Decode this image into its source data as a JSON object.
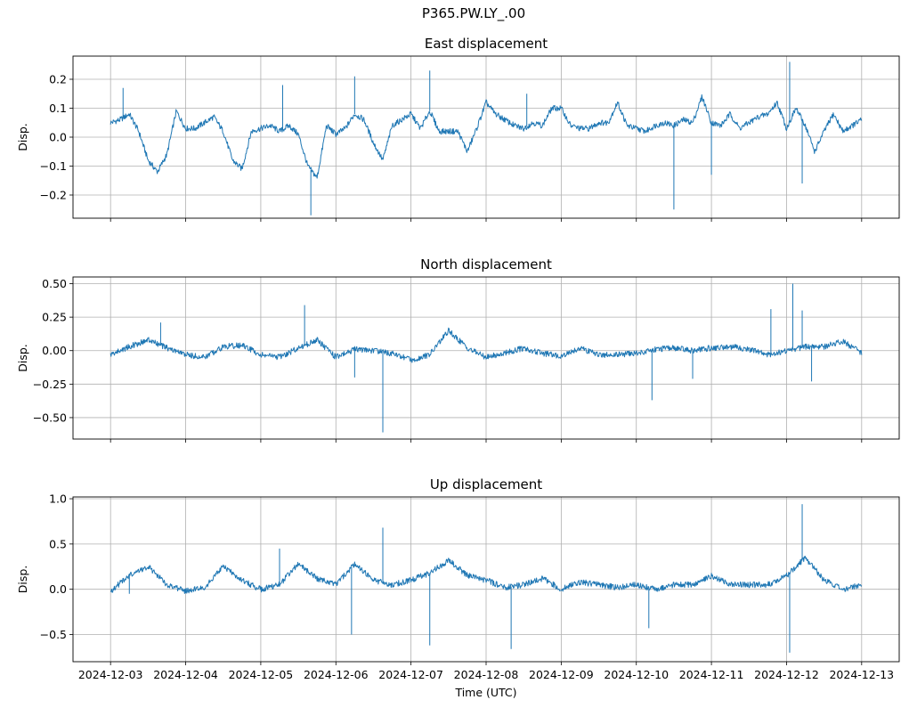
{
  "figure": {
    "title": "P365.PW.LY_.00",
    "xlabel": "Time (UTC)"
  },
  "chart_data": [
    {
      "type": "line",
      "title": "East displacement",
      "ylabel": "Disp.",
      "xlim": [
        "2024-12-02T12:00",
        "2024-12-13T12:00"
      ],
      "ylim": [
        -0.28,
        0.28
      ],
      "yticks": [
        0.2,
        0.1,
        0.0,
        -0.1,
        -0.2
      ],
      "ytick_labels": [
        "0.2",
        "0.1",
        "0.0",
        "−0.1",
        "−0.2"
      ],
      "grid": true,
      "series": [
        {
          "color": "#1f77b4",
          "x": [
            "2024-12-03T00:00",
            "2024-12-03T03:00",
            "2024-12-03T06:00",
            "2024-12-03T09:00",
            "2024-12-03T12:00",
            "2024-12-03T15:00",
            "2024-12-03T18:00",
            "2024-12-03T21:00",
            "2024-12-04T00:00",
            "2024-12-04T03:00",
            "2024-12-04T06:00",
            "2024-12-04T09:00",
            "2024-12-04T12:00",
            "2024-12-04T15:00",
            "2024-12-04T18:00",
            "2024-12-04T21:00",
            "2024-12-05T00:00",
            "2024-12-05T03:00",
            "2024-12-05T06:00",
            "2024-12-05T09:00",
            "2024-12-05T12:00",
            "2024-12-05T15:00",
            "2024-12-05T18:00",
            "2024-12-05T21:00",
            "2024-12-06T00:00",
            "2024-12-06T03:00",
            "2024-12-06T06:00",
            "2024-12-06T09:00",
            "2024-12-06T12:00",
            "2024-12-06T15:00",
            "2024-12-06T18:00",
            "2024-12-06T21:00",
            "2024-12-07T00:00",
            "2024-12-07T03:00",
            "2024-12-07T06:00",
            "2024-12-07T09:00",
            "2024-12-07T12:00",
            "2024-12-07T15:00",
            "2024-12-07T18:00",
            "2024-12-07T21:00",
            "2024-12-08T00:00",
            "2024-12-08T03:00",
            "2024-12-08T06:00",
            "2024-12-08T09:00",
            "2024-12-08T12:00",
            "2024-12-08T15:00",
            "2024-12-08T18:00",
            "2024-12-08T21:00",
            "2024-12-09T00:00",
            "2024-12-09T03:00",
            "2024-12-09T06:00",
            "2024-12-09T09:00",
            "2024-12-09T12:00",
            "2024-12-09T15:00",
            "2024-12-09T18:00",
            "2024-12-09T21:00",
            "2024-12-10T00:00",
            "2024-12-10T03:00",
            "2024-12-10T06:00",
            "2024-12-10T09:00",
            "2024-12-10T12:00",
            "2024-12-10T15:00",
            "2024-12-10T18:00",
            "2024-12-10T21:00",
            "2024-12-11T00:00",
            "2024-12-11T03:00",
            "2024-12-11T06:00",
            "2024-12-11T09:00",
            "2024-12-11T12:00",
            "2024-12-11T15:00",
            "2024-12-11T18:00",
            "2024-12-11T21:00",
            "2024-12-12T00:00",
            "2024-12-12T03:00",
            "2024-12-12T06:00",
            "2024-12-12T09:00",
            "2024-12-12T12:00",
            "2024-12-12T15:00",
            "2024-12-12T18:00",
            "2024-12-12T21:00",
            "2024-12-13T00:00"
          ],
          "values": [
            0.05,
            0.06,
            0.08,
            0.02,
            -0.08,
            -0.12,
            -0.06,
            0.09,
            0.03,
            0.03,
            0.05,
            0.07,
            0.02,
            -0.08,
            -0.11,
            0.02,
            0.03,
            0.04,
            0.02,
            0.04,
            0.01,
            -0.1,
            -0.14,
            0.04,
            0.01,
            0.03,
            0.08,
            0.06,
            -0.02,
            -0.08,
            0.04,
            0.06,
            0.08,
            0.03,
            0.09,
            0.02,
            0.02,
            0.02,
            -0.05,
            0.03,
            0.12,
            0.08,
            0.06,
            0.04,
            0.03,
            0.05,
            0.04,
            0.1,
            0.1,
            0.04,
            0.03,
            0.03,
            0.05,
            0.05,
            0.12,
            0.04,
            0.03,
            0.02,
            0.04,
            0.05,
            0.04,
            0.06,
            0.05,
            0.14,
            0.05,
            0.04,
            0.08,
            0.03,
            0.05,
            0.07,
            0.08,
            0.12,
            0.03,
            0.1,
            0.04,
            -0.05,
            0.02,
            0.08,
            0.02,
            0.04,
            0.06
          ],
          "spikes": [
            {
              "x": "2024-12-03T04:00",
              "y": 0.17
            },
            {
              "x": "2024-12-05T07:00",
              "y": 0.18
            },
            {
              "x": "2024-12-05T16:00",
              "y": -0.27
            },
            {
              "x": "2024-12-06T06:00",
              "y": 0.21
            },
            {
              "x": "2024-12-07T06:00",
              "y": 0.23
            },
            {
              "x": "2024-12-08T13:00",
              "y": 0.15
            },
            {
              "x": "2024-12-10T12:00",
              "y": -0.25
            },
            {
              "x": "2024-12-11T00:00",
              "y": -0.13
            },
            {
              "x": "2024-12-12T01:00",
              "y": 0.26
            },
            {
              "x": "2024-12-12T05:00",
              "y": -0.16
            }
          ]
        }
      ]
    },
    {
      "type": "line",
      "title": "North displacement",
      "ylabel": "Disp.",
      "xlim": [
        "2024-12-02T12:00",
        "2024-12-13T12:00"
      ],
      "ylim": [
        -0.66,
        0.55
      ],
      "yticks": [
        0.5,
        0.25,
        0.0,
        -0.25,
        -0.5
      ],
      "ytick_labels": [
        "0.50",
        "0.25",
        "0.00",
        "−0.25",
        "−0.50"
      ],
      "grid": true,
      "series": [
        {
          "color": "#1f77b4",
          "x": [
            "2024-12-03T00:00",
            "2024-12-03T06:00",
            "2024-12-03T12:00",
            "2024-12-03T18:00",
            "2024-12-04T00:00",
            "2024-12-04T06:00",
            "2024-12-04T12:00",
            "2024-12-04T18:00",
            "2024-12-05T00:00",
            "2024-12-05T06:00",
            "2024-12-05T12:00",
            "2024-12-05T18:00",
            "2024-12-06T00:00",
            "2024-12-06T06:00",
            "2024-12-06T12:00",
            "2024-12-06T18:00",
            "2024-12-07T00:00",
            "2024-12-07T06:00",
            "2024-12-07T12:00",
            "2024-12-07T18:00",
            "2024-12-08T00:00",
            "2024-12-08T06:00",
            "2024-12-08T12:00",
            "2024-12-08T18:00",
            "2024-12-09T00:00",
            "2024-12-09T06:00",
            "2024-12-09T12:00",
            "2024-12-09T18:00",
            "2024-12-10T00:00",
            "2024-12-10T06:00",
            "2024-12-10T12:00",
            "2024-12-10T18:00",
            "2024-12-11T00:00",
            "2024-12-11T06:00",
            "2024-12-11T12:00",
            "2024-12-11T18:00",
            "2024-12-12T00:00",
            "2024-12-12T06:00",
            "2024-12-12T12:00",
            "2024-12-12T18:00",
            "2024-12-13T00:00"
          ],
          "values": [
            -0.03,
            0.03,
            0.08,
            0.02,
            -0.03,
            -0.05,
            0.03,
            0.04,
            -0.03,
            -0.05,
            0.02,
            0.08,
            -0.05,
            0.01,
            0.0,
            -0.02,
            -0.07,
            -0.03,
            0.15,
            0.02,
            -0.05,
            -0.02,
            0.02,
            -0.02,
            -0.04,
            0.02,
            -0.03,
            -0.03,
            -0.02,
            0.01,
            0.02,
            0.0,
            0.02,
            0.03,
            0.01,
            -0.03,
            0.0,
            0.03,
            0.03,
            0.07,
            -0.02
          ],
          "spikes": [
            {
              "x": "2024-12-03T16:00",
              "y": 0.21
            },
            {
              "x": "2024-12-05T14:00",
              "y": 0.34
            },
            {
              "x": "2024-12-06T06:00",
              "y": -0.2
            },
            {
              "x": "2024-12-06T15:00",
              "y": -0.61
            },
            {
              "x": "2024-12-10T05:00",
              "y": -0.37
            },
            {
              "x": "2024-12-10T18:00",
              "y": -0.21
            },
            {
              "x": "2024-12-11T19:00",
              "y": 0.31
            },
            {
              "x": "2024-12-12T02:00",
              "y": 0.5
            },
            {
              "x": "2024-12-12T05:00",
              "y": 0.3
            },
            {
              "x": "2024-12-12T08:00",
              "y": -0.23
            }
          ]
        }
      ]
    },
    {
      "type": "line",
      "title": "Up displacement",
      "ylabel": "Disp.",
      "xlim": [
        "2024-12-02T12:00",
        "2024-12-13T12:00"
      ],
      "ylim": [
        -0.8,
        1.02
      ],
      "yticks": [
        1.0,
        0.5,
        0.0,
        -0.5
      ],
      "ytick_labels": [
        "1.0",
        "0.5",
        "0.0",
        "−0.5"
      ],
      "xtick_labels": [
        "2024-12-03",
        "2024-12-04",
        "2024-12-05",
        "2024-12-06",
        "2024-12-07",
        "2024-12-08",
        "2024-12-09",
        "2024-12-10",
        "2024-12-11",
        "2024-12-12",
        "2024-12-13"
      ],
      "grid": true,
      "series": [
        {
          "color": "#1f77b4",
          "x": [
            "2024-12-03T00:00",
            "2024-12-03T06:00",
            "2024-12-03T12:00",
            "2024-12-03T18:00",
            "2024-12-04T00:00",
            "2024-12-04T06:00",
            "2024-12-04T12:00",
            "2024-12-04T18:00",
            "2024-12-05T00:00",
            "2024-12-05T06:00",
            "2024-12-05T12:00",
            "2024-12-05T18:00",
            "2024-12-06T00:00",
            "2024-12-06T06:00",
            "2024-12-06T12:00",
            "2024-12-06T18:00",
            "2024-12-07T00:00",
            "2024-12-07T06:00",
            "2024-12-07T12:00",
            "2024-12-07T18:00",
            "2024-12-08T00:00",
            "2024-12-08T06:00",
            "2024-12-08T12:00",
            "2024-12-08T18:00",
            "2024-12-09T00:00",
            "2024-12-09T06:00",
            "2024-12-09T12:00",
            "2024-12-09T18:00",
            "2024-12-10T00:00",
            "2024-12-10T06:00",
            "2024-12-10T12:00",
            "2024-12-10T18:00",
            "2024-12-11T00:00",
            "2024-12-11T06:00",
            "2024-12-11T12:00",
            "2024-12-11T18:00",
            "2024-12-12T00:00",
            "2024-12-12T06:00",
            "2024-12-12T12:00",
            "2024-12-12T18:00",
            "2024-12-13T00:00"
          ],
          "values": [
            -0.02,
            0.15,
            0.25,
            0.05,
            -0.02,
            0.02,
            0.25,
            0.1,
            0.0,
            0.05,
            0.28,
            0.12,
            0.05,
            0.28,
            0.1,
            0.05,
            0.1,
            0.18,
            0.32,
            0.15,
            0.1,
            0.02,
            0.05,
            0.12,
            0.0,
            0.08,
            0.05,
            0.02,
            0.05,
            0.0,
            0.05,
            0.05,
            0.15,
            0.05,
            0.05,
            0.05,
            0.15,
            0.35,
            0.1,
            0.0,
            0.05
          ],
          "spikes": [
            {
              "x": "2024-12-03T06:00",
              "y": -0.05
            },
            {
              "x": "2024-12-05T06:00",
              "y": 0.45
            },
            {
              "x": "2024-12-06T05:00",
              "y": -0.5
            },
            {
              "x": "2024-12-06T15:00",
              "y": 0.68
            },
            {
              "x": "2024-12-07T06:00",
              "y": -0.62
            },
            {
              "x": "2024-12-08T08:00",
              "y": -0.66
            },
            {
              "x": "2024-12-10T04:00",
              "y": -0.43
            },
            {
              "x": "2024-12-12T01:00",
              "y": -0.7
            },
            {
              "x": "2024-12-12T05:00",
              "y": 0.94
            }
          ]
        }
      ]
    }
  ]
}
